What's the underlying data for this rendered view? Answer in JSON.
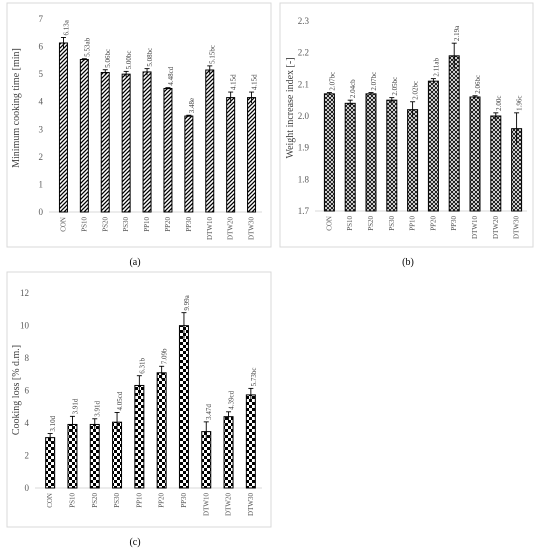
{
  "chart_data": [
    {
      "panel": "(a)",
      "type": "bar",
      "ylabel": "Minimum cooking time [min]",
      "ylim": [
        0,
        7
      ],
      "ytick_step": 1,
      "grid": false,
      "pattern": "diagonal-hatch",
      "categories": [
        "CON",
        "PS10",
        "PS20",
        "PS30",
        "PP10",
        "PP20",
        "PP30",
        "DTW10",
        "DTW20",
        "DTW30"
      ],
      "values": [
        6.13,
        5.53,
        5.06,
        5.0,
        5.08,
        4.48,
        3.48,
        5.15,
        4.15,
        4.15
      ],
      "errors": [
        0.2,
        0.03,
        0.1,
        0.1,
        0.12,
        0.03,
        0.03,
        0.15,
        0.2,
        0.2
      ],
      "labels": [
        "6.13a",
        "5.53ab",
        "5.06bc",
        "5.00bc",
        "5.08bc",
        "4.48cd",
        "3.48e",
        "5.15bc",
        "4.15d",
        "4.15d"
      ]
    },
    {
      "panel": "(b)",
      "type": "bar",
      "ylabel": "Weight increase index [-]",
      "ylim": [
        1.7,
        2.3
      ],
      "ytick_step": 0.1,
      "grid": false,
      "pattern": "crosshatch",
      "categories": [
        "CON",
        "PS10",
        "PS20",
        "PS30",
        "PP10",
        "PP20",
        "PP30",
        "DTW10",
        "DTW20",
        "DTW30"
      ],
      "values": [
        2.07,
        2.04,
        2.07,
        2.05,
        2.02,
        2.11,
        2.19,
        2.06,
        2.0,
        1.96
      ],
      "errors": [
        0.004,
        0.01,
        0.004,
        0.008,
        0.025,
        0.008,
        0.04,
        0.004,
        0.01,
        0.05
      ],
      "labels": [
        "2.07bc",
        "2.04cb",
        "2.07bc",
        "2.05bc",
        "2.02bc",
        "2.11ab",
        "2.19a",
        "2.06bc",
        "2.00c",
        "1.96c"
      ]
    },
    {
      "panel": "(c)",
      "type": "bar",
      "ylabel": "Cooking loss [% d.m.]",
      "ylim": [
        0,
        12
      ],
      "ytick_step": 2,
      "grid": false,
      "pattern": "checkerboard",
      "categories": [
        "CON",
        "PS10",
        "PS20",
        "PS30",
        "PP10",
        "PP20",
        "PP30",
        "DTW10",
        "DTW20",
        "DTW30"
      ],
      "values": [
        3.1,
        3.91,
        3.91,
        4.05,
        6.31,
        7.09,
        9.99,
        3.47,
        4.39,
        5.73
      ],
      "errors": [
        0.25,
        0.5,
        0.35,
        0.6,
        0.6,
        0.4,
        0.8,
        0.6,
        0.3,
        0.4
      ],
      "labels": [
        "3.10d",
        "3.91d",
        "3.91d",
        "4.05cd",
        "6.31b",
        "7.09b",
        "9.99a",
        "3.47d",
        "4.39cd",
        "5.73bc"
      ]
    }
  ]
}
